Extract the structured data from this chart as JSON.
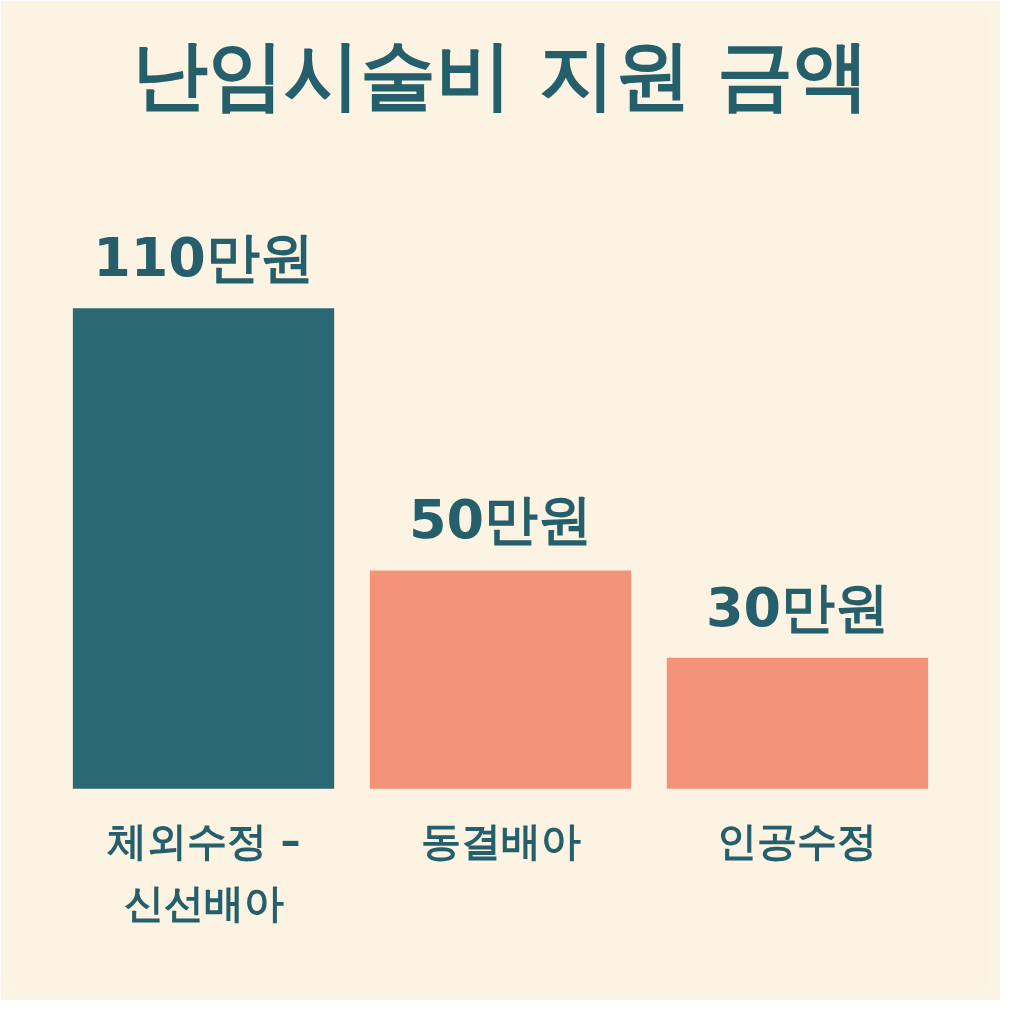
{
  "chart_data": {
    "type": "bar",
    "title": "난임시술비 지원 금액",
    "categories": [
      "체외수정 –\n신선배아",
      "동결배아",
      "인공수정"
    ],
    "values": [
      110,
      50,
      30
    ],
    "colors": [
      "#2a6874",
      "#f4937a",
      "#f4937a"
    ],
    "value_labels": [
      "110만원",
      "50만원",
      "30만원"
    ],
    "grid": false
  }
}
